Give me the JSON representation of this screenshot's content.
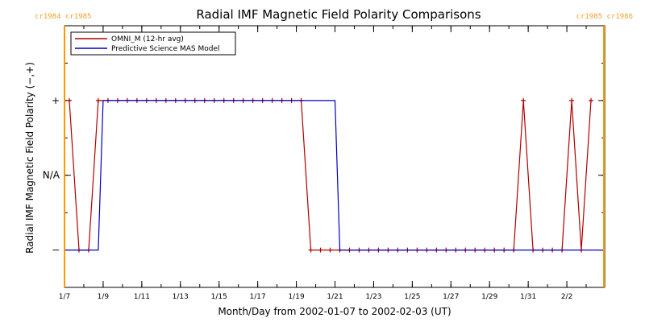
{
  "chart_data": {
    "type": "line",
    "title": "Radial IMF Magnetic Field Polarity Comparisons",
    "xlabel": "Month/Day from 2002-01-07 to 2002-02-03 (UT)",
    "ylabel": "Radial IMF Magnetic Field Polarity (−,+)",
    "x_unit": "days",
    "xlim": [
      "2002-01-07T00:00",
      "2002-02-03T23:00"
    ],
    "x_tick_labels": [
      "1/7",
      "1/9",
      "1/11",
      "1/13",
      "1/15",
      "1/17",
      "1/19",
      "1/21",
      "1/23",
      "1/25",
      "1/27",
      "1/29",
      "1/31",
      "2/2"
    ],
    "x_tick_dates": [
      "2002-01-07",
      "2002-01-09",
      "2002-01-11",
      "2002-01-13",
      "2002-01-15",
      "2002-01-17",
      "2002-01-19",
      "2002-01-21",
      "2002-01-23",
      "2002-01-25",
      "2002-01-27",
      "2002-01-29",
      "2002-01-31",
      "2002-02-02"
    ],
    "y_tick_labels": [
      "+",
      "N/A",
      "−"
    ],
    "y_tick_values": [
      1,
      0,
      -1
    ],
    "ylim": [
      -1.5,
      2
    ],
    "legend_position": "top-left",
    "grid": false,
    "series": [
      {
        "name": "OMNI_M (12-hr avg)",
        "color": "#b00000",
        "markers": true,
        "points": [
          [
            "2002-01-07T06:00",
            1
          ],
          [
            "2002-01-07T18:00",
            -1
          ],
          [
            "2002-01-08T06:00",
            -1
          ],
          [
            "2002-01-08T18:00",
            1
          ],
          [
            "2002-01-09T06:00",
            1
          ],
          [
            "2002-01-09T18:00",
            1
          ],
          [
            "2002-01-10T06:00",
            1
          ],
          [
            "2002-01-10T18:00",
            1
          ],
          [
            "2002-01-11T06:00",
            1
          ],
          [
            "2002-01-11T18:00",
            1
          ],
          [
            "2002-01-12T06:00",
            1
          ],
          [
            "2002-01-12T18:00",
            1
          ],
          [
            "2002-01-13T06:00",
            1
          ],
          [
            "2002-01-13T18:00",
            1
          ],
          [
            "2002-01-14T06:00",
            1
          ],
          [
            "2002-01-14T18:00",
            1
          ],
          [
            "2002-01-15T06:00",
            1
          ],
          [
            "2002-01-15T18:00",
            1
          ],
          [
            "2002-01-16T06:00",
            1
          ],
          [
            "2002-01-16T18:00",
            1
          ],
          [
            "2002-01-17T06:00",
            1
          ],
          [
            "2002-01-17T18:00",
            1
          ],
          [
            "2002-01-18T06:00",
            1
          ],
          [
            "2002-01-18T18:00",
            1
          ],
          [
            "2002-01-19T06:00",
            1
          ],
          [
            "2002-01-19T18:00",
            -1
          ],
          [
            "2002-01-20T06:00",
            -1
          ],
          [
            "2002-01-20T18:00",
            -1
          ],
          [
            "2002-01-21T06:00",
            -1
          ],
          [
            "2002-01-21T18:00",
            -1
          ],
          [
            "2002-01-22T06:00",
            -1
          ],
          [
            "2002-01-22T18:00",
            -1
          ],
          [
            "2002-01-23T06:00",
            -1
          ],
          [
            "2002-01-23T18:00",
            -1
          ],
          [
            "2002-01-24T06:00",
            -1
          ],
          [
            "2002-01-24T18:00",
            -1
          ],
          [
            "2002-01-25T06:00",
            -1
          ],
          [
            "2002-01-25T18:00",
            -1
          ],
          [
            "2002-01-26T06:00",
            -1
          ],
          [
            "2002-01-26T18:00",
            -1
          ],
          [
            "2002-01-27T06:00",
            -1
          ],
          [
            "2002-01-27T18:00",
            -1
          ],
          [
            "2002-01-28T06:00",
            -1
          ],
          [
            "2002-01-28T18:00",
            -1
          ],
          [
            "2002-01-29T06:00",
            -1
          ],
          [
            "2002-01-29T18:00",
            -1
          ],
          [
            "2002-01-30T06:00",
            -1
          ],
          [
            "2002-01-30T18:00",
            1
          ],
          [
            "2002-01-31T06:00",
            -1
          ],
          [
            "2002-01-31T18:00",
            -1
          ],
          [
            "2002-02-01T06:00",
            -1
          ],
          [
            "2002-02-01T18:00",
            -1
          ],
          [
            "2002-02-02T06:00",
            1
          ],
          [
            "2002-02-02T18:00",
            -1
          ],
          [
            "2002-02-03T06:00",
            1
          ]
        ]
      },
      {
        "name": "Predictive Science MAS Model",
        "color": "#0000c0",
        "markers": false,
        "points": [
          [
            "2002-01-07T00:00",
            -1
          ],
          [
            "2002-01-08T18:00",
            -1
          ],
          [
            "2002-01-09T00:00",
            1
          ],
          [
            "2002-01-21T00:00",
            1
          ],
          [
            "2002-01-21T06:00",
            -1
          ],
          [
            "2002-02-03T23:00",
            -1
          ]
        ]
      }
    ],
    "carrington_markers": [
      {
        "label": "cr1984 cr1985",
        "date": "2002-01-07T00:00",
        "color": "#ff9900"
      },
      {
        "label": "cr1985 cr1986",
        "date": "2002-02-03T22:00",
        "color": "#ff9900"
      }
    ]
  }
}
